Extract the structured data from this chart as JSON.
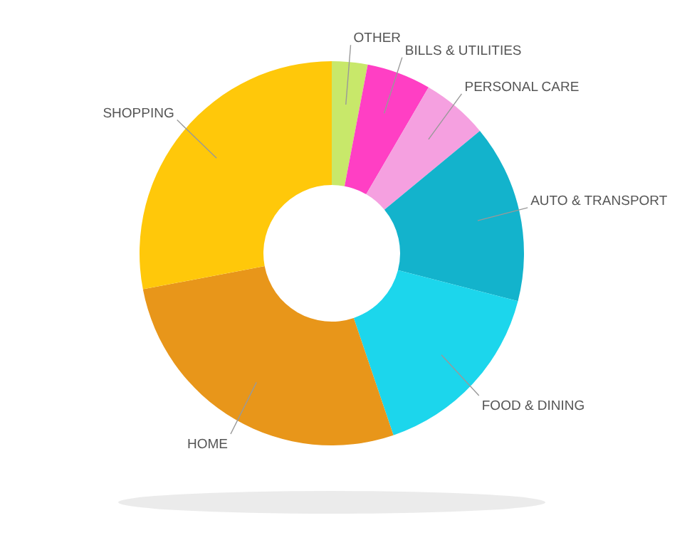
{
  "chart_data": {
    "type": "donut",
    "categories": [
      "OTHER",
      "BILLS & UTILITIES",
      "PERSONAL CARE",
      "AUTO & TRANSPORT",
      "FOOD & DINING",
      "HOME",
      "SHOPPING"
    ],
    "values": [
      3,
      5.4,
      5.6,
      15,
      15.8,
      27.2,
      28
    ],
    "colors": [
      "#c8e86a",
      "#ff3fc4",
      "#f5a0e0",
      "#13b3cc",
      "#1cd6ec",
      "#e8961a",
      "#ffc80a"
    ]
  }
}
